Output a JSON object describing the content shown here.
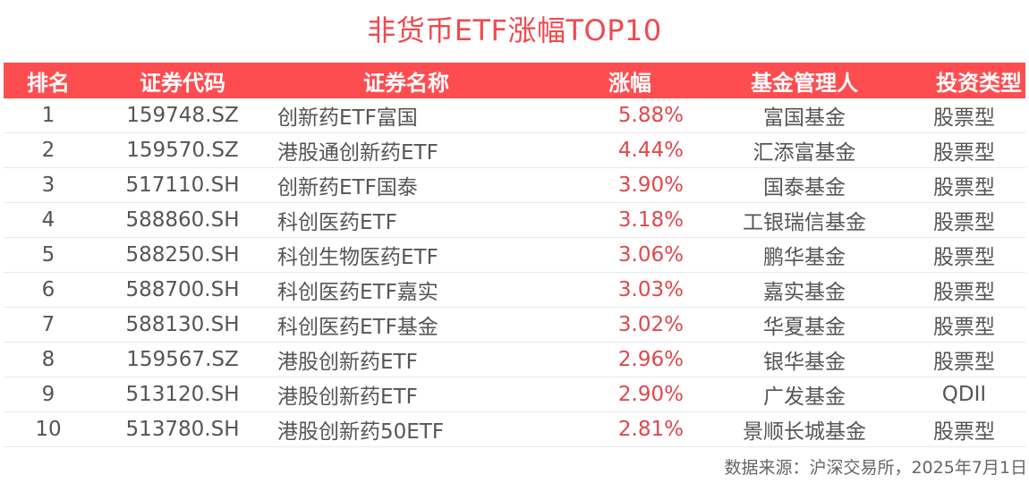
{
  "title": "非货币ETF涨幅TOP10",
  "table": {
    "headers": {
      "rank": "排名",
      "code": "证券代码",
      "name": "证券名称",
      "change": "涨幅",
      "manager": "基金管理人",
      "type": "投资类型"
    },
    "rows": [
      {
        "rank": "1",
        "code": "159748.SZ",
        "name": "创新药ETF富国",
        "change": "5.88%",
        "manager": "富国基金",
        "type": "股票型"
      },
      {
        "rank": "2",
        "code": "159570.SZ",
        "name": "港股通创新药ETF",
        "change": "4.44%",
        "manager": "汇添富基金",
        "type": "股票型"
      },
      {
        "rank": "3",
        "code": "517110.SH",
        "name": "创新药ETF国泰",
        "change": "3.90%",
        "manager": "国泰基金",
        "type": "股票型"
      },
      {
        "rank": "4",
        "code": "588860.SH",
        "name": "科创医药ETF",
        "change": "3.18%",
        "manager": "工银瑞信基金",
        "type": "股票型"
      },
      {
        "rank": "5",
        "code": "588250.SH",
        "name": "科创生物医药ETF",
        "change": "3.06%",
        "manager": "鹏华基金",
        "type": "股票型"
      },
      {
        "rank": "6",
        "code": "588700.SH",
        "name": "科创医药ETF嘉实",
        "change": "3.03%",
        "manager": "嘉实基金",
        "type": "股票型"
      },
      {
        "rank": "7",
        "code": "588130.SH",
        "name": "科创医药ETF基金",
        "change": "3.02%",
        "manager": "华夏基金",
        "type": "股票型"
      },
      {
        "rank": "8",
        "code": "159567.SZ",
        "name": "港股创新药ETF",
        "change": "2.96%",
        "manager": "银华基金",
        "type": "股票型"
      },
      {
        "rank": "9",
        "code": "513120.SH",
        "name": "港股创新药ETF",
        "change": "2.90%",
        "manager": "广发基金",
        "type": "QDII"
      },
      {
        "rank": "10",
        "code": "513780.SH",
        "name": "港股创新药50ETF",
        "change": "2.81%",
        "manager": "景顺长城基金",
        "type": "股票型"
      }
    ]
  },
  "footer": {
    "source": "数据来源：沪深交易所，2025年7月1日"
  },
  "colors": {
    "title": "#f0494e",
    "header_bg": "#fe4d50",
    "change_text": "#e0474c",
    "body_text": "#555555"
  }
}
